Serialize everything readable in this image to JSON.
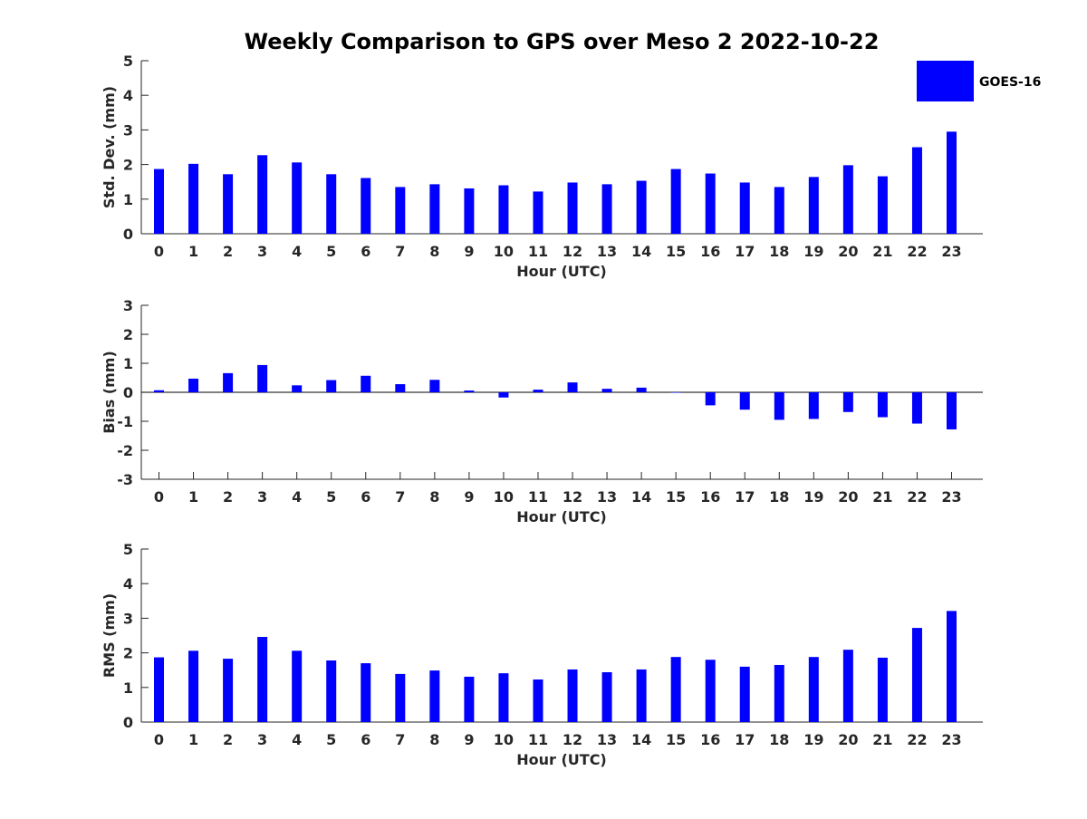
{
  "title": "Weekly Comparison to GPS over Meso 2 2022-10-22",
  "colors": {
    "bar": "#0000ff",
    "axis": "#262626"
  },
  "legend": {
    "label": "GOES-16",
    "position": "top-right"
  },
  "chart_data": [
    {
      "type": "bar",
      "name": "std-dev",
      "xlabel": "Hour (UTC)",
      "ylabel": "Std. Dev. (mm)",
      "ylim": [
        0,
        5
      ],
      "yticks": [
        0,
        1,
        2,
        3,
        4,
        5
      ],
      "categories": [
        "0",
        "1",
        "2",
        "3",
        "4",
        "5",
        "6",
        "7",
        "8",
        "9",
        "10",
        "11",
        "12",
        "13",
        "14",
        "15",
        "16",
        "17",
        "18",
        "19",
        "20",
        "21",
        "22",
        "23"
      ],
      "series": [
        {
          "name": "GOES-16",
          "values": [
            1.87,
            2.02,
            1.72,
            2.27,
            2.06,
            1.72,
            1.61,
            1.35,
            1.43,
            1.31,
            1.4,
            1.22,
            1.48,
            1.43,
            1.53,
            1.87,
            1.74,
            1.48,
            1.35,
            1.64,
            1.98,
            1.66,
            2.5,
            2.95
          ]
        }
      ]
    },
    {
      "type": "bar",
      "name": "bias",
      "xlabel": "Hour (UTC)",
      "ylabel": "Bias (mm)",
      "ylim": [
        -3,
        3
      ],
      "yticks": [
        -3,
        -2,
        -1,
        0,
        1,
        2,
        3
      ],
      "zero_line": true,
      "categories": [
        "0",
        "1",
        "2",
        "3",
        "4",
        "5",
        "6",
        "7",
        "8",
        "9",
        "10",
        "11",
        "12",
        "13",
        "14",
        "15",
        "16",
        "17",
        "18",
        "19",
        "20",
        "21",
        "22",
        "23"
      ],
      "series": [
        {
          "name": "GOES-16",
          "values": [
            0.07,
            0.47,
            0.66,
            0.94,
            0.24,
            0.42,
            0.57,
            0.28,
            0.43,
            0.06,
            -0.18,
            0.09,
            0.34,
            0.12,
            0.16,
            0.0,
            -0.45,
            -0.6,
            -0.95,
            -0.92,
            -0.68,
            -0.86,
            -1.08,
            -1.28
          ]
        }
      ]
    },
    {
      "type": "bar",
      "name": "rms",
      "xlabel": "Hour (UTC)",
      "ylabel": "RMS (mm)",
      "ylim": [
        0,
        5
      ],
      "yticks": [
        0,
        1,
        2,
        3,
        4,
        5
      ],
      "categories": [
        "0",
        "1",
        "2",
        "3",
        "4",
        "5",
        "6",
        "7",
        "8",
        "9",
        "10",
        "11",
        "12",
        "13",
        "14",
        "15",
        "16",
        "17",
        "18",
        "19",
        "20",
        "21",
        "22",
        "23"
      ],
      "series": [
        {
          "name": "GOES-16",
          "values": [
            1.87,
            2.06,
            1.83,
            2.46,
            2.06,
            1.78,
            1.7,
            1.39,
            1.49,
            1.31,
            1.41,
            1.23,
            1.52,
            1.44,
            1.52,
            1.88,
            1.8,
            1.6,
            1.65,
            1.88,
            2.09,
            1.86,
            2.72,
            3.21
          ]
        }
      ]
    }
  ]
}
